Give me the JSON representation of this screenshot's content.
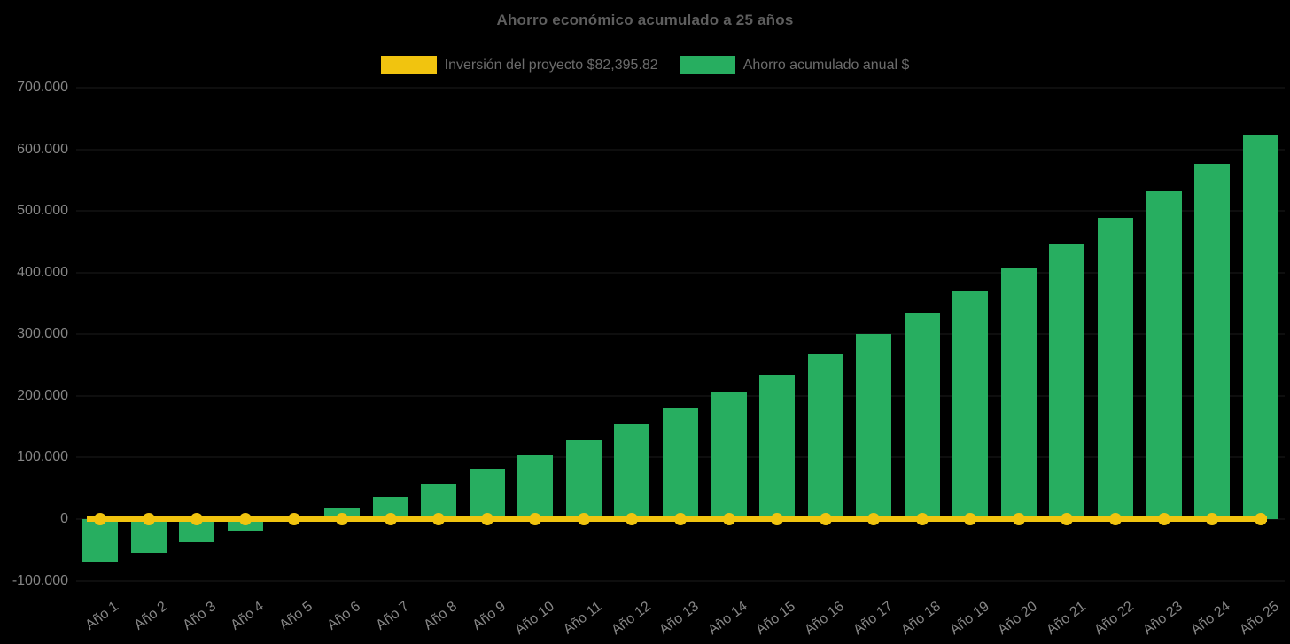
{
  "page": {
    "background": "#000000"
  },
  "chart_data": {
    "type": "bar",
    "title": "Ahorro económico acumulado a 25 años",
    "xlabel": "",
    "ylabel": "",
    "ylim": [
      -100000,
      700000
    ],
    "grid": "horizontal, very faint over black background",
    "legend_position": "top-center",
    "categories": [
      "Año 1",
      "Año 2",
      "Año 3",
      "Año 4",
      "Año 5",
      "Año 6",
      "Año 7",
      "Año 8",
      "Año 9",
      "Año 10",
      "Año 11",
      "Año 12",
      "Año 13",
      "Año 14",
      "Año 15",
      "Año 16",
      "Año 17",
      "Año 18",
      "Año 19",
      "Año 20",
      "Año 21",
      "Año 22",
      "Año 23",
      "Año 24",
      "Año 25"
    ],
    "series": [
      {
        "name": "Inversión del proyecto $82,395.82",
        "type": "line",
        "color": "#f1c40f",
        "marker": "circle",
        "values": [
          0,
          0,
          0,
          0,
          0,
          0,
          0,
          0,
          0,
          0,
          0,
          0,
          0,
          0,
          0,
          0,
          0,
          0,
          0,
          0,
          0,
          0,
          0,
          0,
          0
        ]
      },
      {
        "name": "Ahorro acumulado anual $",
        "type": "bar",
        "color": "#27ae60",
        "values": [
          -69000,
          -55000,
          -37000,
          -19000,
          1000,
          18000,
          36000,
          57000,
          80000,
          104000,
          128000,
          154000,
          180000,
          207000,
          235000,
          267000,
          300000,
          335000,
          371000,
          408000,
          447000,
          489000,
          532000,
          577000,
          624000
        ]
      }
    ],
    "y_ticks": [
      {
        "label": "700.000",
        "value": 700000
      },
      {
        "label": "600.000",
        "value": 600000
      },
      {
        "label": "500.000",
        "value": 500000
      },
      {
        "label": "400.000",
        "value": 400000
      },
      {
        "label": "300.000",
        "value": 300000
      },
      {
        "label": "200.000",
        "value": 200000
      },
      {
        "label": "100.000",
        "value": 100000
      },
      {
        "label": "0",
        "value": 0
      },
      {
        "label": "-100.000",
        "value": -100000
      }
    ]
  }
}
